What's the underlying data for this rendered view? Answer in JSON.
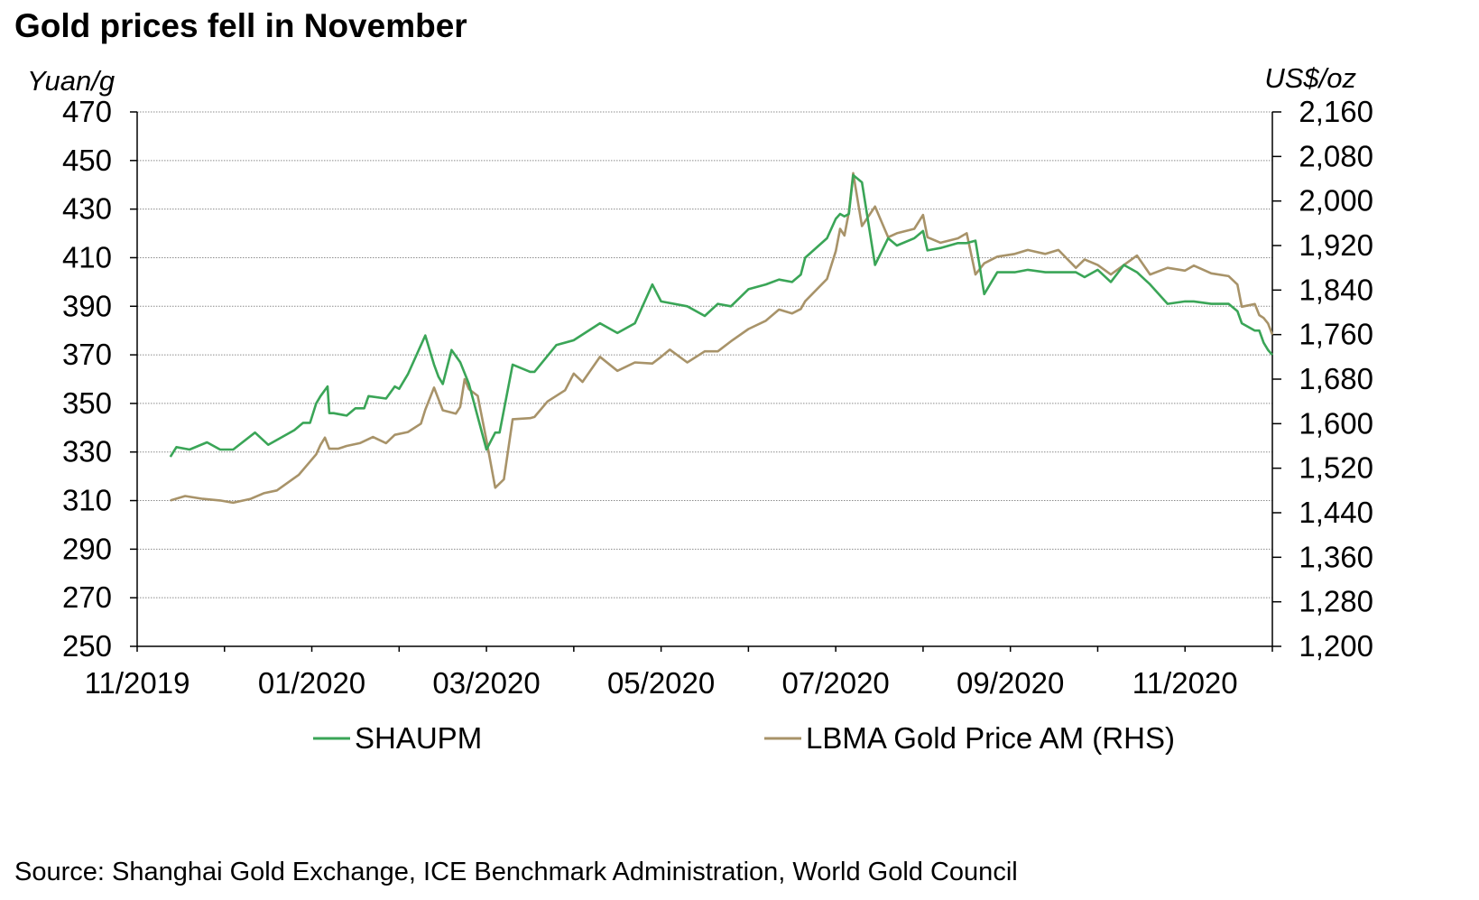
{
  "title": "Gold prices fell in November",
  "source": "Source: Shanghai Gold Exchange, ICE Benchmark Administration, World Gold Council",
  "colors": {
    "shaupm": "#3aa557",
    "lbma": "#a89369",
    "grid": "#8c8c8c",
    "axis": "#000000"
  },
  "chart_data": {
    "type": "line",
    "title": "Gold prices fell in November",
    "left_axis": {
      "unit": "Yuan/g",
      "min": 250,
      "max": 470,
      "ticks": [
        "470",
        "450",
        "430",
        "410",
        "390",
        "370",
        "350",
        "330",
        "310",
        "290",
        "270",
        "250"
      ]
    },
    "right_axis": {
      "unit": "US$/oz",
      "min": 1200,
      "max": 2160,
      "ticks": [
        "2,160",
        "2,080",
        "2,000",
        "1,920",
        "1,840",
        "1,760",
        "1,680",
        "1,600",
        "1,520",
        "1,440",
        "1,360",
        "1,280",
        "1,200"
      ]
    },
    "x_axis": {
      "range_months": [
        0,
        13
      ],
      "ticks": [
        "11/2019",
        "01/2020",
        "03/2020",
        "05/2020",
        "07/2020",
        "09/2020",
        "11/2020"
      ]
    },
    "grid": true,
    "legend": [
      {
        "name": "SHAUPM",
        "axis": "left"
      },
      {
        "name": "LBMA Gold Price AM (RHS)",
        "axis": "right"
      }
    ],
    "series": [
      {
        "name": "SHAUPM",
        "axis": "left",
        "x": [
          0.38,
          0.45,
          0.6,
          0.8,
          0.95,
          1.1,
          1.35,
          1.5,
          1.65,
          1.8,
          1.9,
          1.98,
          2.05,
          2.1,
          2.18,
          2.2,
          2.25,
          2.4,
          2.5,
          2.6,
          2.65,
          2.85,
          2.95,
          3.0,
          3.1,
          3.3,
          3.4,
          3.45,
          3.5,
          3.6,
          3.7,
          3.8,
          4.0,
          4.1,
          4.15,
          4.3,
          4.5,
          4.55,
          4.8,
          5.0,
          5.3,
          5.5,
          5.7,
          5.9,
          6.0,
          6.3,
          6.5,
          6.65,
          6.8,
          7.0,
          7.2,
          7.35,
          7.5,
          7.6,
          7.65,
          7.9,
          8.0,
          8.05,
          8.1,
          8.15,
          8.2,
          8.3,
          8.45,
          8.6,
          8.7,
          8.9,
          9.0,
          9.05,
          9.2,
          9.4,
          9.5,
          9.6,
          9.7,
          9.85,
          10.05,
          10.2,
          10.4,
          10.55,
          10.75,
          10.85,
          11.0,
          11.15,
          11.3,
          11.45,
          11.6,
          11.8,
          12.0,
          12.1,
          12.3,
          12.5,
          12.6,
          12.65,
          12.8,
          12.85,
          12.9,
          12.95,
          13.0
        ],
        "y": [
          328,
          332,
          331,
          334,
          331,
          331,
          338,
          333,
          336,
          339,
          342,
          342,
          350,
          353,
          357,
          346,
          346,
          345,
          348,
          348,
          353,
          352,
          357,
          356,
          362,
          378,
          366,
          361,
          358,
          372,
          367,
          358,
          331,
          338,
          338,
          366,
          363,
          363,
          374,
          376,
          383,
          379,
          383,
          399,
          392,
          390,
          386,
          391,
          390,
          397,
          399,
          401,
          400,
          403,
          410,
          418,
          426,
          428,
          427,
          428,
          444,
          441,
          407,
          418,
          415,
          418,
          421,
          413,
          414,
          416,
          416,
          417,
          395,
          404,
          404,
          405,
          404,
          404,
          404,
          402,
          405,
          400,
          407,
          404,
          399,
          391,
          392,
          392,
          391,
          391,
          388,
          383,
          380,
          380,
          375,
          372,
          370
        ]
      },
      {
        "name": "LBMA Gold Price AM (RHS)",
        "axis": "right",
        "x": [
          0.38,
          0.55,
          0.75,
          0.95,
          1.1,
          1.3,
          1.45,
          1.6,
          1.85,
          1.98,
          2.05,
          2.1,
          2.15,
          2.2,
          2.3,
          2.4,
          2.55,
          2.7,
          2.85,
          2.95,
          3.1,
          3.25,
          3.3,
          3.4,
          3.5,
          3.65,
          3.7,
          3.75,
          3.8,
          3.9,
          4.0,
          4.1,
          4.2,
          4.3,
          4.5,
          4.55,
          4.7,
          4.9,
          5.0,
          5.1,
          5.3,
          5.5,
          5.7,
          5.9,
          6.0,
          6.1,
          6.3,
          6.5,
          6.65,
          6.8,
          7.0,
          7.2,
          7.35,
          7.5,
          7.6,
          7.65,
          7.9,
          8.0,
          8.05,
          8.1,
          8.15,
          8.2,
          8.3,
          8.45,
          8.6,
          8.7,
          8.9,
          9.0,
          9.05,
          9.2,
          9.4,
          9.5,
          9.6,
          9.7,
          9.85,
          10.05,
          10.2,
          10.4,
          10.55,
          10.75,
          10.85,
          11.0,
          11.15,
          11.3,
          11.45,
          11.6,
          11.8,
          12.0,
          12.1,
          12.3,
          12.5,
          12.6,
          12.65,
          12.8,
          12.85,
          12.9,
          12.95,
          13.0
        ],
        "y": [
          1462,
          1470,
          1465,
          1462,
          1458,
          1465,
          1475,
          1480,
          1508,
          1532,
          1545,
          1562,
          1575,
          1555,
          1555,
          1560,
          1565,
          1576,
          1565,
          1580,
          1585,
          1600,
          1625,
          1665,
          1624,
          1618,
          1630,
          1680,
          1662,
          1650,
          1570,
          1485,
          1500,
          1608,
          1610,
          1612,
          1640,
          1660,
          1690,
          1675,
          1720,
          1695,
          1710,
          1708,
          1720,
          1733,
          1710,
          1730,
          1730,
          1748,
          1770,
          1785,
          1805,
          1798,
          1806,
          1820,
          1860,
          1910,
          1950,
          1938,
          1980,
          2050,
          1955,
          1990,
          1935,
          1942,
          1950,
          1975,
          1935,
          1925,
          1933,
          1942,
          1868,
          1888,
          1900,
          1905,
          1912,
          1905,
          1912,
          1880,
          1895,
          1885,
          1868,
          1885,
          1902,
          1868,
          1880,
          1875,
          1884,
          1870,
          1865,
          1850,
          1810,
          1815,
          1795,
          1790,
          1780,
          1760
        ]
      }
    ]
  }
}
